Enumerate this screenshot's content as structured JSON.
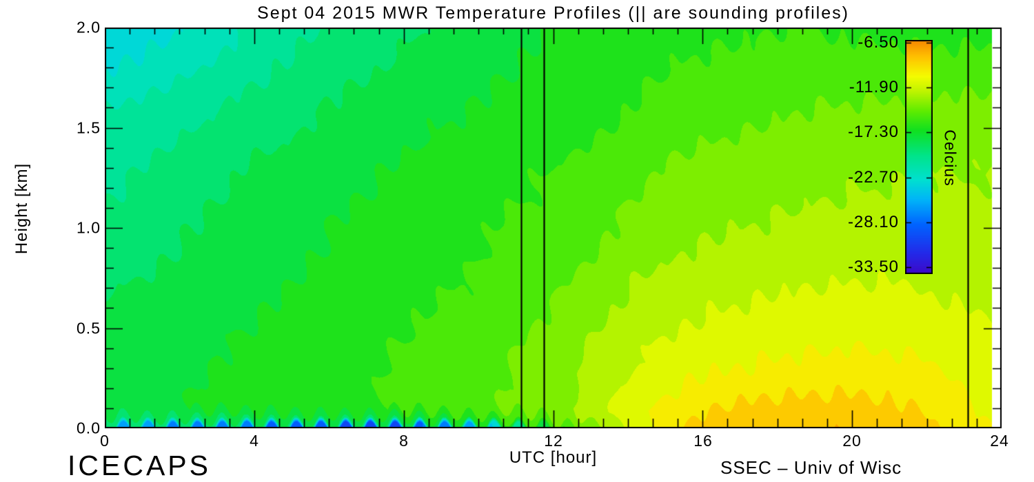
{
  "title": "Sept 04 2015 MWR Temperature Profiles (|| are sounding profiles)",
  "axes": {
    "x": {
      "label": "UTC [hour]",
      "min": 0,
      "max": 24,
      "tick_labels": [
        "0",
        "4",
        "8",
        "12",
        "16",
        "20",
        "24"
      ]
    },
    "y": {
      "label": "Height [km]",
      "min": 0,
      "max": 2,
      "tick_labels": [
        "2.0",
        "1.5",
        "1.0",
        "0.5",
        "0.0"
      ]
    }
  },
  "colorbar": {
    "label": "Celcius",
    "tick_labels": [
      "-6.50",
      "-11.90",
      "-17.30",
      "-22.70",
      "-28.10",
      "-33.50"
    ],
    "tick_values": [
      -6.5,
      -11.9,
      -17.3,
      -22.7,
      -28.1,
      -33.5
    ]
  },
  "footer": {
    "left": "ICECAPS",
    "right": "SSEC – Univ of Wisc"
  },
  "chart_data": {
    "type": "heatmap",
    "title": "Sept 04 2015 MWR Temperature Profiles (|| are sounding profiles)",
    "xlabel": "UTC [hour]",
    "ylabel": "Height [km]",
    "units": "Celcius",
    "xlim": [
      0,
      24
    ],
    "ylim": [
      0,
      2
    ],
    "data_end_hour": 23.75,
    "sounding_profile_hours": [
      11.15,
      11.75,
      23.1
    ],
    "x_hours": [
      0,
      1,
      2,
      3,
      4,
      5,
      6,
      7,
      8,
      9,
      10,
      11,
      12,
      13,
      14,
      15,
      16,
      17,
      18,
      19,
      20,
      21,
      22,
      23,
      24
    ],
    "y_heights_km": [
      0,
      0.025,
      0.1,
      0.2,
      0.3,
      0.5,
      0.7,
      1.0,
      1.3,
      1.6,
      2.0
    ],
    "temperature_c_rows_by_height": [
      [
        -26,
        -26.5,
        -27,
        -27.5,
        -28,
        -28.5,
        -29.5,
        -30.5,
        -29.5,
        -27.5,
        -25,
        -21,
        -17.5,
        -14,
        -11.5,
        -9.8,
        -8.8,
        -8.2,
        -8,
        -7.9,
        -7.9,
        -8.2,
        -8.7,
        -10,
        -10.6
      ],
      [
        -19.8,
        -19.6,
        -19.4,
        -19.2,
        -19,
        -18.9,
        -18.8,
        -19.2,
        -18.8,
        -18,
        -17.2,
        -16,
        -15.2,
        -13.4,
        -11.4,
        -9.9,
        -8.9,
        -8.4,
        -8.2,
        -8.1,
        -8.1,
        -8.3,
        -8.8,
        -10.1,
        -10.7
      ],
      [
        -17.8,
        -17.6,
        -17.4,
        -17.2,
        -16.9,
        -16.6,
        -16.4,
        -16.1,
        -15.8,
        -15.4,
        -15,
        -14.5,
        -13.8,
        -12.8,
        -11.4,
        -10.2,
        -9.4,
        -9,
        -8.8,
        -8.7,
        -8.7,
        -8.9,
        -9.3,
        -10.4,
        -11
      ],
      [
        -17.8,
        -17.6,
        -17.4,
        -17.1,
        -16.8,
        -16.5,
        -16.3,
        -16,
        -15.7,
        -15.3,
        -14.9,
        -14.4,
        -13.7,
        -12.8,
        -11.6,
        -10.7,
        -10,
        -9.7,
        -9.5,
        -9.4,
        -9.4,
        -9.5,
        -9.8,
        -10.6,
        -11.2
      ],
      [
        -18,
        -17.8,
        -17.5,
        -17.2,
        -17,
        -16.7,
        -16.4,
        -16.1,
        -15.8,
        -15.4,
        -15,
        -14.5,
        -13.8,
        -13,
        -12,
        -11.3,
        -10.8,
        -10.5,
        -10.3,
        -10.2,
        -10.1,
        -10.2,
        -10.4,
        -11,
        -11.5
      ],
      [
        -18.3,
        -18,
        -17.8,
        -17.5,
        -17.2,
        -16.9,
        -16.6,
        -16.3,
        -16,
        -15.7,
        -15.3,
        -14.8,
        -14.2,
        -13.4,
        -12.6,
        -12,
        -11.7,
        -11.4,
        -11.2,
        -11.1,
        -11,
        -11,
        -11.2,
        -11.6,
        -12
      ],
      [
        -18.8,
        -18.5,
        -18.2,
        -17.9,
        -17.6,
        -17.3,
        -17,
        -16.7,
        -16.4,
        -16.1,
        -15.8,
        -15.4,
        -14.8,
        -14,
        -13.3,
        -12.8,
        -12.4,
        -12.2,
        -12,
        -11.9,
        -11.8,
        -11.8,
        -11.9,
        -12.2,
        -12.5
      ],
      [
        -19.5,
        -19.2,
        -18.8,
        -18.4,
        -18,
        -17.6,
        -17.3,
        -17,
        -16.7,
        -16.4,
        -16.1,
        -15.8,
        -15.5,
        -15,
        -14.3,
        -13.8,
        -13.5,
        -13.3,
        -13.1,
        -13,
        -12.9,
        -12.8,
        -12.8,
        -12.9,
        -13
      ],
      [
        -20.5,
        -20,
        -19.5,
        -19,
        -18.5,
        -18.2,
        -17.8,
        -17.5,
        -17.2,
        -16.8,
        -16.5,
        -16.2,
        -16,
        -15.5,
        -15,
        -14.5,
        -14.2,
        -14,
        -13.8,
        -13.6,
        -13.5,
        -13.4,
        -13.3,
        -13.3,
        -13.3
      ],
      [
        -21.5,
        -21,
        -20.5,
        -20,
        -19.5,
        -19,
        -18.5,
        -18.2,
        -17.8,
        -17.5,
        -17.2,
        -17,
        -16.8,
        -16.5,
        -16,
        -15.5,
        -15.2,
        -15,
        -14.8,
        -14.6,
        -14.5,
        -14.4,
        -14.3,
        -14.2,
        -14.2
      ],
      [
        -24,
        -23.6,
        -23,
        -22,
        -21.2,
        -20.6,
        -20,
        -19.5,
        -19,
        -18.5,
        -18,
        -17.6,
        -17.3,
        -17,
        -16.8,
        -16.5,
        -16.3,
        -16.2,
        -16,
        -16,
        -16.2,
        -16.3,
        -16.5,
        -16.5,
        -16.5
      ]
    ],
    "value_range": [
      -34.85,
      -5.15
    ],
    "contour_interval_c": 1.35,
    "colormap": [
      {
        "t": 0.0,
        "c": "#4400c0"
      },
      {
        "t": 0.1,
        "c": "#2428e8"
      },
      {
        "t": 0.22,
        "c": "#0064ff"
      },
      {
        "t": 0.32,
        "c": "#00b4f8"
      },
      {
        "t": 0.4,
        "c": "#00e0d0"
      },
      {
        "t": 0.5,
        "c": "#00e488"
      },
      {
        "t": 0.6,
        "c": "#10e020"
      },
      {
        "t": 0.68,
        "c": "#60ec00"
      },
      {
        "t": 0.76,
        "c": "#c0f400"
      },
      {
        "t": 0.82,
        "c": "#f4fc00"
      },
      {
        "t": 0.9,
        "c": "#ffc000"
      },
      {
        "t": 1.0,
        "c": "#f06800"
      }
    ],
    "legend_position": "inside-top-right"
  }
}
